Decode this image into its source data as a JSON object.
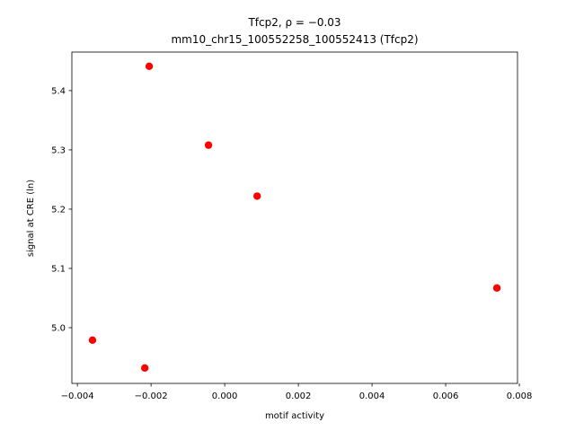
{
  "chart_data": {
    "type": "scatter",
    "title": [
      "Tfcp2, ρ = −0.03",
      "mm10_chr15_100552258_100552413 (Tfcp2)"
    ],
    "x_label": "motif activity",
    "y_label": "signal at CRE (ln)",
    "color": "#ff0000",
    "x": [
      -0.00205,
      -0.00044,
      0.00088,
      0.00739,
      -0.00359,
      -0.00217
    ],
    "y": [
      5.441,
      5.308,
      5.222,
      5.067,
      4.979,
      4.932
    ],
    "xlim": [
      -0.00415,
      0.00795
    ],
    "ylim": [
      4.906,
      5.465
    ],
    "xticks": [
      {
        "value": -0.004,
        "label": "−0.004"
      },
      {
        "value": -0.002,
        "label": "−0.002"
      },
      {
        "value": 0,
        "label": "0.000"
      },
      0.002,
      0.004,
      0.006,
      0.008
    ],
    "yticks": [
      {
        "value": 5,
        "label": "5.0"
      },
      5.1,
      5.2,
      5.3,
      5.4
    ]
  }
}
